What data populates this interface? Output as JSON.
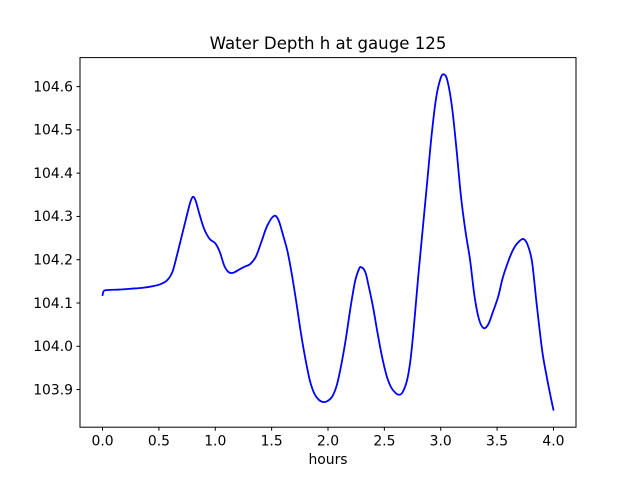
{
  "window": {
    "background": "#ffffff"
  },
  "chart_data": {
    "type": "line",
    "title": "Water Depth h at gauge 125",
    "xlabel": "hours",
    "ylabel": "",
    "xlim": [
      -0.2,
      4.2
    ],
    "ylim": [
      103.813,
      104.667
    ],
    "xticks": [
      0.0,
      0.5,
      1.0,
      1.5,
      2.0,
      2.5,
      3.0,
      3.5,
      4.0
    ],
    "xtick_labels": [
      "0.0",
      "0.5",
      "1.0",
      "1.5",
      "2.0",
      "2.5",
      "3.0",
      "3.5",
      "4.0"
    ],
    "yticks": [
      103.9,
      104.0,
      104.1,
      104.2,
      104.3,
      104.4,
      104.5,
      104.6
    ],
    "ytick_labels": [
      "103.9",
      "104.0",
      "104.1",
      "104.2",
      "104.3",
      "104.4",
      "104.5",
      "104.6"
    ],
    "grid": false,
    "legend": null,
    "axis_color": "#000000",
    "series": [
      {
        "name": "water-depth-h",
        "color": "#0000ff",
        "line_width": 1.8,
        "x": [
          0.0,
          0.012,
          0.05,
          0.15,
          0.25,
          0.35,
          0.45,
          0.52,
          0.575,
          0.62,
          0.66,
          0.7,
          0.74,
          0.775,
          0.8,
          0.825,
          0.86,
          0.9,
          0.95,
          1.0,
          1.04,
          1.08,
          1.12,
          1.16,
          1.21,
          1.26,
          1.31,
          1.36,
          1.41,
          1.46,
          1.52,
          1.56,
          1.6,
          1.64,
          1.68,
          1.72,
          1.76,
          1.8,
          1.84,
          1.88,
          1.92,
          1.96,
          2.0,
          2.04,
          2.08,
          2.12,
          2.16,
          2.2,
          2.24,
          2.27,
          2.29,
          2.33,
          2.36,
          2.4,
          2.44,
          2.48,
          2.52,
          2.56,
          2.6,
          2.63,
          2.66,
          2.7,
          2.73,
          2.76,
          2.8,
          2.84,
          2.88,
          2.92,
          2.96,
          3.0,
          3.03,
          3.06,
          3.1,
          3.14,
          3.18,
          3.22,
          3.26,
          3.3,
          3.34,
          3.38,
          3.42,
          3.46,
          3.51,
          3.55,
          3.6,
          3.64,
          3.68,
          3.73,
          3.77,
          3.81,
          3.85,
          3.9,
          3.94,
          3.97,
          4.0
        ],
        "y": [
          104.118,
          104.128,
          104.13,
          104.131,
          104.133,
          104.135,
          104.139,
          104.144,
          104.153,
          104.172,
          104.21,
          104.252,
          104.294,
          104.33,
          104.345,
          104.337,
          104.305,
          104.272,
          104.248,
          104.238,
          104.218,
          104.186,
          104.171,
          104.17,
          104.177,
          104.184,
          104.19,
          104.207,
          104.242,
          104.278,
          104.301,
          104.292,
          104.258,
          104.22,
          104.165,
          104.1,
          104.03,
          103.97,
          103.92,
          103.89,
          103.876,
          103.871,
          103.874,
          103.885,
          103.912,
          103.96,
          104.02,
          104.09,
          104.15,
          104.175,
          104.183,
          104.172,
          104.14,
          104.09,
          104.03,
          103.975,
          103.932,
          103.905,
          103.892,
          103.888,
          103.893,
          103.92,
          103.965,
          104.04,
          104.16,
          104.27,
          104.38,
          104.49,
          104.575,
          104.62,
          104.628,
          104.613,
          104.553,
          104.455,
          104.345,
          104.265,
          104.2,
          104.115,
          104.062,
          104.042,
          104.05,
          104.077,
          104.115,
          104.158,
          104.197,
          104.222,
          104.238,
          104.248,
          104.235,
          104.195,
          104.1,
          103.99,
          103.93,
          103.89,
          103.853
        ]
      }
    ]
  }
}
